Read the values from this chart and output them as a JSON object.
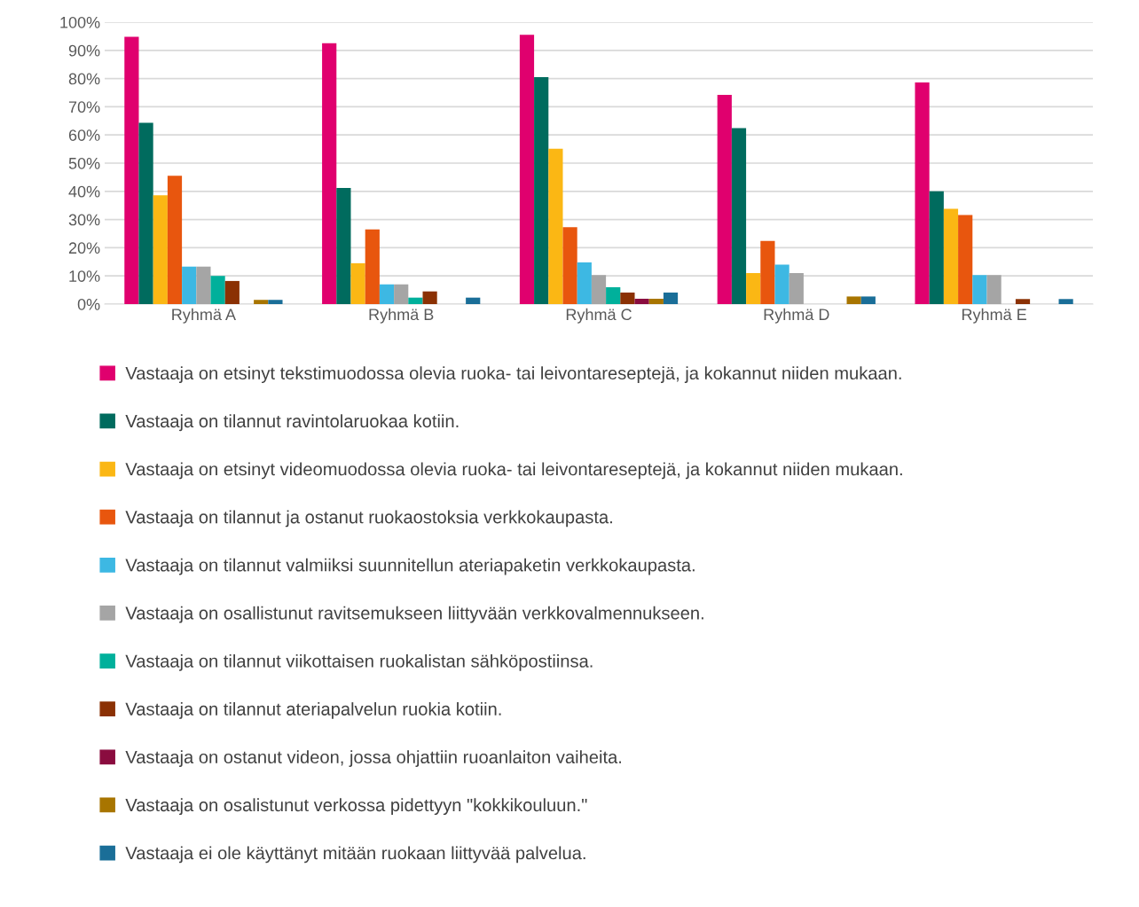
{
  "chart_data": {
    "type": "bar",
    "categories": [
      "Ryhmä A",
      "Ryhmä B",
      "Ryhmä C",
      "Ryhmä D",
      "Ryhmä E"
    ],
    "ylim": [
      0,
      100
    ],
    "yticks": [
      {
        "value": 0,
        "label": "0%"
      },
      {
        "value": 10,
        "label": "10%"
      },
      {
        "value": 20,
        "label": "20%"
      },
      {
        "value": 30,
        "label": "30%"
      },
      {
        "value": 40,
        "label": "40%"
      },
      {
        "value": 50,
        "label": "50%"
      },
      {
        "value": 60,
        "label": "60%"
      },
      {
        "value": 70,
        "label": "70%"
      },
      {
        "value": 80,
        "label": "80%"
      },
      {
        "value": 90,
        "label": "90%"
      },
      {
        "value": 100,
        "label": "100%"
      }
    ],
    "grid": "y",
    "legend": "bottom",
    "series": [
      {
        "name": "Vastaaja on etsinyt tekstimuodossa olevia ruoka- tai leivontareseptejä, ja kokannut niiden mukaan.",
        "color": "#e0006e",
        "values": [
          94.8,
          92.5,
          95.5,
          74.2,
          78.6
        ]
      },
      {
        "name": "Vastaaja on tilannut ravintolaruokaa kotiin.",
        "color": "#006b5e",
        "values": [
          64.3,
          41.2,
          80.5,
          62.4,
          40.0
        ]
      },
      {
        "name": "Vastaaja on etsinyt videomuodossa olevia ruoka- tai leivontareseptejä, ja kokannut niiden mukaan.",
        "color": "#fbb714",
        "values": [
          38.6,
          14.5,
          55.1,
          11.0,
          33.8
        ]
      },
      {
        "name": "Vastaaja on tilannut ja ostanut ruokaostoksia verkkokaupasta.",
        "color": "#e8560e",
        "values": [
          45.5,
          26.5,
          27.3,
          22.4,
          31.6
        ]
      },
      {
        "name": "Vastaaja on tilannut valmiiksi suunnitellun ateriapaketin verkkokaupasta.",
        "color": "#3db8e3",
        "values": [
          13.3,
          7.0,
          14.8,
          14.0,
          10.3
        ]
      },
      {
        "name": "Vastaaja on osallistunut ravitsemukseen liittyvään verkkovalmennukseen.",
        "color": "#a5a5a5",
        "values": [
          13.3,
          7.0,
          10.3,
          11.0,
          10.3
        ]
      },
      {
        "name": "Vastaaja on tilannut viikottaisen ruokalistan sähköpostiinsa.",
        "color": "#00b09b",
        "values": [
          10.0,
          2.3,
          6.0,
          0,
          0
        ]
      },
      {
        "name": "Vastaaja on tilannut ateriapalvelun ruokia kotiin.",
        "color": "#8b3104",
        "values": [
          8.2,
          4.5,
          4.1,
          0,
          1.8
        ]
      },
      {
        "name": "Vastaaja on ostanut videon, jossa ohjattiin ruoanlaiton vaiheita.",
        "color": "#8a0c3f",
        "values": [
          0,
          0,
          1.9,
          0,
          0
        ]
      },
      {
        "name": "Vastaaja on osalistunut verkossa pidettyyn \"kokkikouluun.\"",
        "color": "#a87500",
        "values": [
          1.5,
          0,
          1.9,
          2.7,
          0
        ]
      },
      {
        "name": "Vastaaja ei ole käyttänyt mitään ruokaan liittyvää palvelua.",
        "color": "#1a6e98",
        "values": [
          1.5,
          2.3,
          4.1,
          2.7,
          1.8
        ]
      }
    ]
  }
}
